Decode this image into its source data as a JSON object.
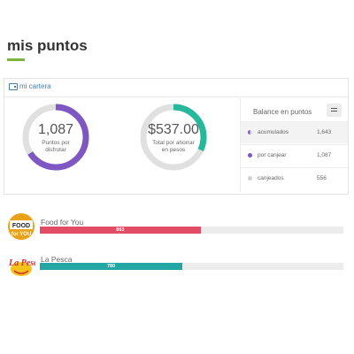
{
  "page": {
    "title": "mis puntos",
    "accent_color": "#7cb342"
  },
  "wallet": {
    "title": "mi cartera",
    "icon": "wallet-icon",
    "points_donut": {
      "value": "1,087",
      "label": "Puntos por disfrutar",
      "fill_fraction": 0.66,
      "color": "#7e57c2"
    },
    "savings_donut": {
      "value": "$537.00",
      "label": "Total por ahorrar en pesos",
      "fill_fraction": 0.32,
      "color": "#26b89a"
    },
    "balance": {
      "title": "Balance en puntos",
      "menu_icon": "menu-icon",
      "rows": [
        {
          "label": "acumulados",
          "value": "1,643",
          "color": "#7e57c2",
          "icon": "half-circle-icon"
        },
        {
          "label": "por canjear",
          "value": "1,087",
          "color": "#7e57c2",
          "icon": "dot-icon"
        },
        {
          "label": "canjeados",
          "value": "556",
          "color": "#d0d0d0",
          "icon": "dot-icon"
        }
      ]
    }
  },
  "partners": [
    {
      "name": "Food for You",
      "points": "863",
      "fill_fraction": 0.53,
      "color": "#e24c65",
      "logo_text": "FOOD FOR YOU",
      "logo": "food-for-you-logo"
    },
    {
      "name": "La Pesca",
      "points": "780",
      "fill_fraction": 0.47,
      "color": "#22a7a2",
      "logo_text": "La Pesca",
      "logo": "la-pesca-logo"
    }
  ]
}
